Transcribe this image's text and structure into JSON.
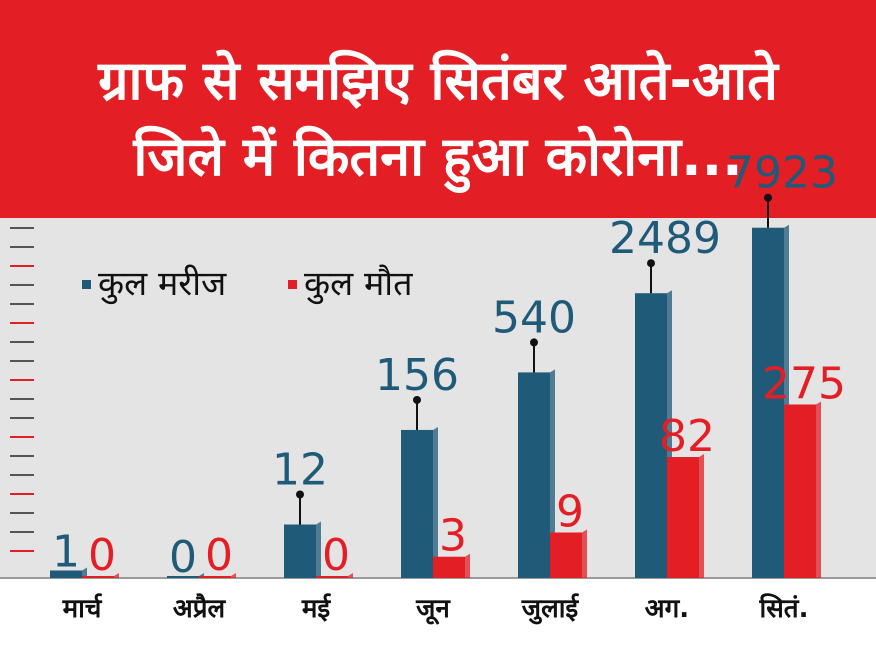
{
  "title": {
    "line1": "ग्राफ से समझिए सितंबर आते-आते",
    "line2": "जिले में कितना हुआ कोरोना..."
  },
  "colors": {
    "title_band": "#e31e25",
    "patients": "#1f5a78",
    "deaths": "#e31e25"
  },
  "legend": [
    {
      "label": "कुल मरीज",
      "color": "#1f5a78"
    },
    {
      "label": "कुल मौत",
      "color": "#e31e25"
    }
  ],
  "chart_data": {
    "type": "bar",
    "categories": [
      "मार्च",
      "अप्रैल",
      "मई",
      "जून",
      "जुलाई",
      "अग.",
      "सितं."
    ],
    "series": [
      {
        "name": "कुल मरीज",
        "values": [
          1,
          0,
          12,
          156,
          540,
          2489,
          7923
        ]
      },
      {
        "name": "कुल मौत",
        "values": [
          0,
          0,
          0,
          3,
          9,
          82,
          275
        ]
      }
    ],
    "title": "ग्राफ से समझिए सितंबर आते-आते जिले में कितना हुआ कोरोना...",
    "legend_position": "top-left",
    "grid": false,
    "scale": "non-linear (illustrative)"
  }
}
